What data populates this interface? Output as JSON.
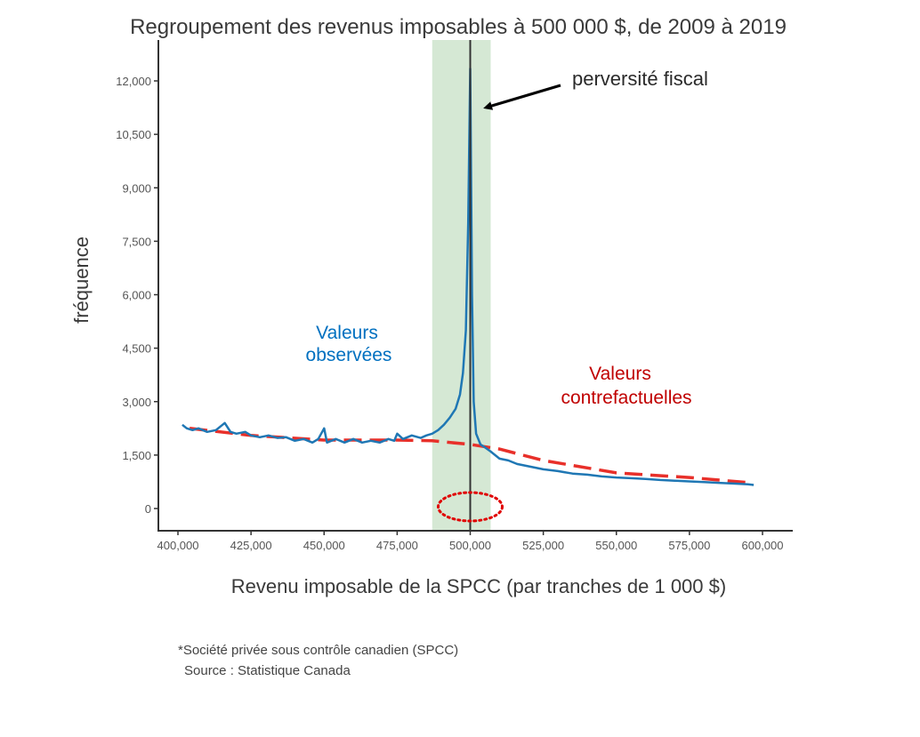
{
  "chart_data": {
    "type": "line",
    "title": "Regroupement des revenus imposables à 500 000 $, de 2009 à 2019",
    "xlabel": "Revenu imposable de la SPCC (par tranches de 1 000 $)",
    "ylabel": "fréquence",
    "xlim": [
      397000,
      605000
    ],
    "ylim": [
      -1000,
      13200
    ],
    "x_ticks": [
      400000,
      425000,
      450000,
      475000,
      500000,
      525000,
      550000,
      575000,
      600000
    ],
    "x_tick_labels": [
      "400,000",
      "425,000",
      "450,000",
      "475,000",
      "500,000",
      "525,000",
      "550,000",
      "575,000",
      "600,000"
    ],
    "y_ticks": [
      0,
      1500,
      3000,
      4500,
      6000,
      7500,
      9000,
      10500,
      12000
    ],
    "y_tick_labels": [
      "0",
      "1,500",
      "3,000",
      "4,500",
      "6,000",
      "7,500",
      "9,000",
      "10,500",
      "12,000"
    ],
    "grid": false,
    "shaded_region": {
      "x": [
        487000,
        507000
      ],
      "color": "#d5e8d4"
    },
    "vertical_line": {
      "x": 500000,
      "color": "#333333"
    },
    "series": [
      {
        "name": "Valeurs observées",
        "label_lines": [
          "Valeurs",
          "observées"
        ],
        "color": "#1f77b4",
        "style": "solid",
        "x": [
          401500,
          403000,
          405000,
          407000,
          410000,
          413000,
          416000,
          418000,
          420000,
          423000,
          425000,
          428000,
          431000,
          434000,
          437000,
          440000,
          443000,
          446000,
          448000,
          450000,
          451000,
          454000,
          457000,
          460000,
          463000,
          466000,
          469000,
          472000,
          474000,
          475000,
          477000,
          480000,
          483000,
          485000,
          487000,
          489000,
          491000,
          493000,
          495000,
          496500,
          497500,
          498500,
          499300,
          500000,
          500600,
          501200,
          502000,
          503500,
          505000,
          507000,
          510000,
          513000,
          516000,
          519000,
          522000,
          525000,
          530000,
          535000,
          540000,
          545000,
          550000,
          555000,
          560000,
          565000,
          570000,
          575000,
          580000,
          585000,
          590000,
          595000,
          597000
        ],
        "values": [
          2350,
          2250,
          2200,
          2250,
          2150,
          2200,
          2400,
          2150,
          2100,
          2150,
          2050,
          2000,
          2050,
          1980,
          2000,
          1900,
          1950,
          1850,
          1950,
          2250,
          1850,
          1950,
          1850,
          1950,
          1850,
          1900,
          1850,
          1950,
          1900,
          2100,
          1950,
          2050,
          1980,
          2050,
          2100,
          2200,
          2350,
          2550,
          2800,
          3200,
          3800,
          5000,
          8000,
          12350,
          6000,
          3000,
          2100,
          1800,
          1720,
          1600,
          1400,
          1350,
          1250,
          1200,
          1150,
          1100,
          1050,
          980,
          950,
          900,
          870,
          850,
          830,
          800,
          780,
          760,
          740,
          720,
          700,
          680,
          660
        ]
      },
      {
        "name": "Valeurs contrefactuelles",
        "label_lines": [
          "Valeurs",
          "contrefactuelles"
        ],
        "color": "#e8302a",
        "style": "dashed",
        "x": [
          404000,
          425000,
          450000,
          475000,
          487000,
          500000,
          510000,
          525000,
          550000,
          575000,
          596000
        ],
        "values": [
          2250,
          2050,
          1920,
          1920,
          1900,
          1800,
          1670,
          1350,
          1000,
          870,
          720
        ]
      }
    ],
    "annotations": [
      {
        "text": "perversité fiscal",
        "arrow_to": [
          500000,
          11500
        ]
      }
    ],
    "highlight_ellipse": {
      "x": 500000,
      "y": 0,
      "color": "#e00000",
      "style": "dotted"
    }
  },
  "footnote": {
    "line1": "*Société privée sous contrôle canadien (SPCC)",
    "line2": "Source : Statistique Canada"
  },
  "colors": {
    "observed": "#1f77b4",
    "counterfactual": "#e8302a",
    "observed_label": "#0070c0",
    "counterfactual_label": "#c00000"
  }
}
